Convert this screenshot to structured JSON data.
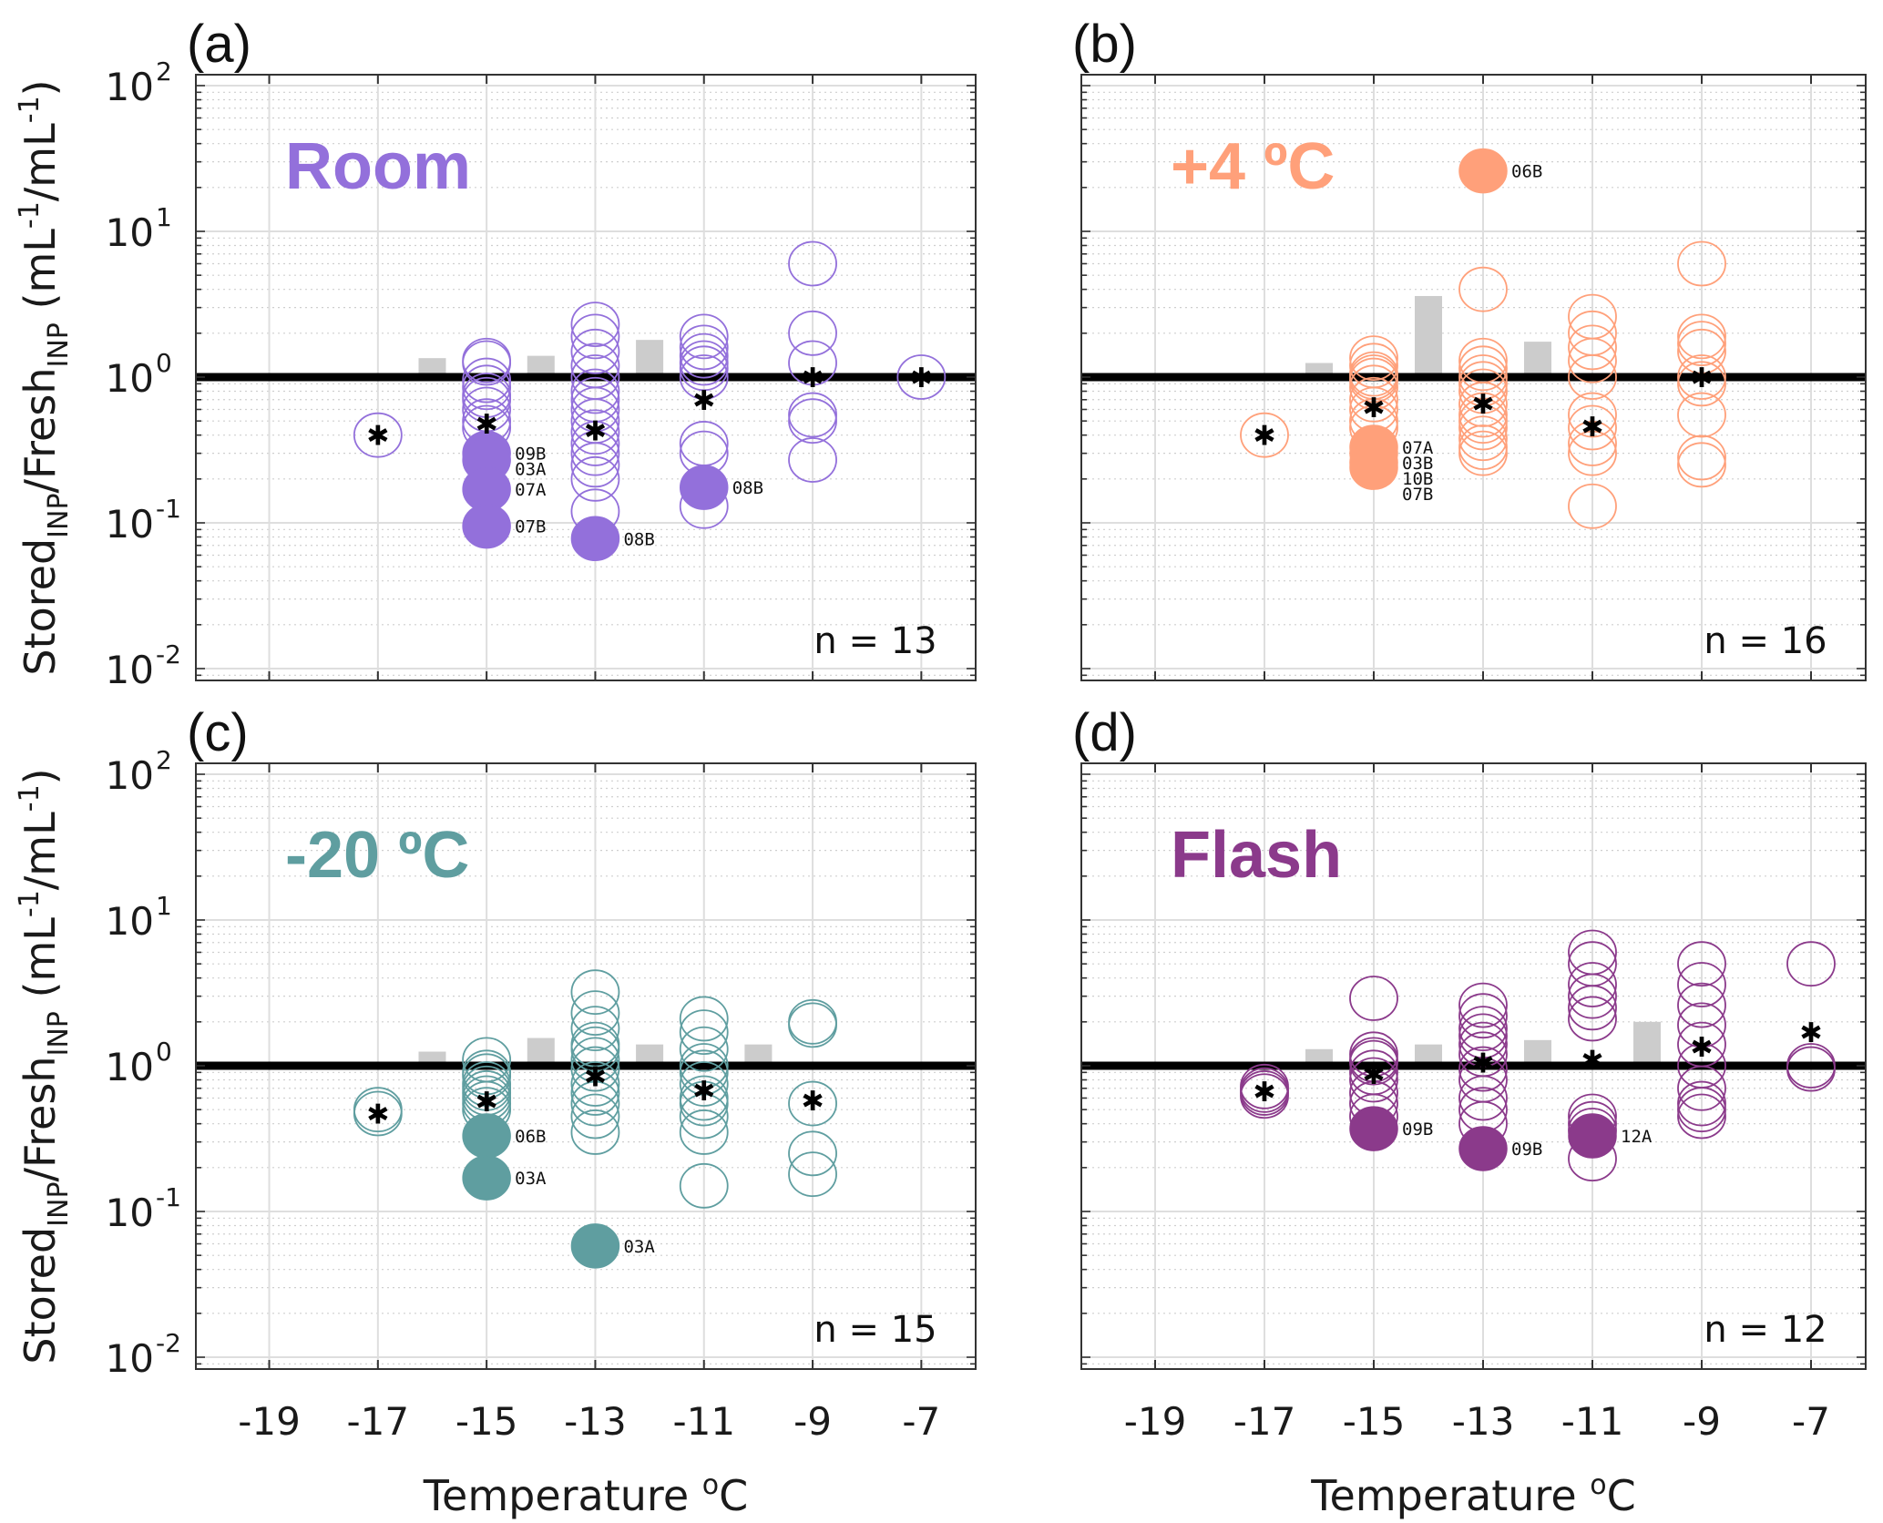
{
  "chart_data": {
    "type": "scatter",
    "figure_xlabel": "Temperature",
    "figure_xlabel_unit": "oC",
    "ylabel_parts": {
      "stored": "Stored",
      "sub1": "INP",
      "slash": "/Fresh",
      "sub2": "INP",
      "units": " (mL",
      "exp1": "-1",
      "mid": "/mL",
      "exp2": "-1",
      "close": ")"
    },
    "xlim": [
      -20,
      -6
    ],
    "ylim": [
      0.0085,
      120
    ],
    "yscale": "log",
    "xticks": [
      -19,
      -17,
      -15,
      -13,
      -11,
      -9,
      -7
    ],
    "xtick_labels": [
      "-19",
      "-17",
      "-15",
      "-13",
      "-11",
      "-9",
      "-7"
    ],
    "yticks": [
      0.01,
      0.1,
      1,
      10,
      100
    ],
    "ytick_labels": [
      {
        "base": "10",
        "exp": "-2"
      },
      {
        "base": "10",
        "exp": "-1"
      },
      {
        "base": "10",
        "exp": "0"
      },
      {
        "base": "10",
        "exp": "1"
      },
      {
        "base": "10",
        "exp": "2"
      }
    ],
    "reference_line": 1,
    "grid": true,
    "legend": "none",
    "marker_legend": {
      "open_circle": "individual sample ratio",
      "filled_circle": "labelled outlier sample",
      "asterisk": "median ratio",
      "gray_bar": "ratio bar between temperatures"
    },
    "panels": [
      {
        "id": "a",
        "panel_label": "(a)",
        "condition": "Room",
        "color": "#9370DB",
        "n_label": "n = 13",
        "open": [
          {
            "x": -17,
            "y": [
              0.4
            ]
          },
          {
            "x": -15,
            "y": [
              1.3,
              1.25,
              0.95,
              0.85,
              0.75,
              0.7,
              0.6,
              0.5,
              0.45
            ]
          },
          {
            "x": -13,
            "y": [
              2.3,
              1.9,
              1.5,
              1.2,
              1.0,
              0.8,
              0.7,
              0.6,
              0.5,
              0.42,
              0.35,
              0.3,
              0.25,
              0.2,
              0.12
            ]
          },
          {
            "x": -11,
            "y": [
              1.9,
              1.6,
              1.4,
              1.25,
              1.15,
              1.0,
              0.35,
              0.3,
              0.13
            ]
          },
          {
            "x": -9,
            "y": [
              6.0,
              2.0,
              1.25,
              0.55,
              0.5,
              0.27
            ]
          },
          {
            "x": -7,
            "y": [
              1.0
            ]
          }
        ],
        "filled": [
          {
            "x": -15,
            "y": 0.3,
            "label": "09B"
          },
          {
            "x": -15,
            "y": 0.27,
            "label": "03A"
          },
          {
            "x": -15,
            "y": 0.17,
            "label": "07A"
          },
          {
            "x": -15,
            "y": 0.095,
            "label": "07B"
          },
          {
            "x": -13,
            "y": 0.078,
            "label": "08B"
          },
          {
            "x": -11,
            "y": 0.175,
            "label": "08B"
          }
        ],
        "medians": [
          {
            "x": -17,
            "y": 0.4
          },
          {
            "x": -15,
            "y": 0.48
          },
          {
            "x": -13,
            "y": 0.43
          },
          {
            "x": -11,
            "y": 0.7
          },
          {
            "x": -9,
            "y": 1.0
          },
          {
            "x": -7,
            "y": 1.0
          }
        ],
        "bars": [
          {
            "x": -16,
            "y": 1.35
          },
          {
            "x": -14,
            "y": 1.4
          },
          {
            "x": -12,
            "y": 1.8
          }
        ]
      },
      {
        "id": "b",
        "panel_label": "(b)",
        "condition": "+4 ºC",
        "color": "#FFA07A",
        "n_label": "n = 16",
        "open": [
          {
            "x": -17,
            "y": [
              0.4
            ]
          },
          {
            "x": -15,
            "y": [
              1.35,
              1.2,
              1.05,
              1.0,
              0.95,
              0.85,
              0.7,
              0.6,
              0.5,
              0.45
            ]
          },
          {
            "x": -13,
            "y": [
              4.0,
              1.3,
              1.15,
              1.0,
              0.9,
              0.8,
              0.65,
              0.55,
              0.5,
              0.45,
              0.38,
              0.33,
              0.3
            ]
          },
          {
            "x": -11,
            "y": [
              2.6,
              2.0,
              1.6,
              1.3,
              1.0,
              0.55,
              0.45,
              0.35,
              0.3,
              0.13
            ]
          },
          {
            "x": -9,
            "y": [
              6.0,
              1.9,
              1.7,
              1.5,
              1.0,
              0.9,
              0.55,
              0.28,
              0.25
            ]
          }
        ],
        "filled": [
          {
            "x": -13,
            "y": 26,
            "label": "06B"
          },
          {
            "x": -15,
            "y": 0.33,
            "label": "07A"
          },
          {
            "x": -15,
            "y": 0.3,
            "label": "03B"
          },
          {
            "x": -15,
            "y": 0.26,
            "label": "10B"
          },
          {
            "x": -15,
            "y": 0.24,
            "label": "07B"
          }
        ],
        "medians": [
          {
            "x": -17,
            "y": 0.4
          },
          {
            "x": -15,
            "y": 0.62
          },
          {
            "x": -13,
            "y": 0.66
          },
          {
            "x": -11,
            "y": 0.46
          },
          {
            "x": -9,
            "y": 1.0
          }
        ],
        "bars": [
          {
            "x": -16,
            "y": 1.25
          },
          {
            "x": -14,
            "y": 3.6
          },
          {
            "x": -12,
            "y": 1.75
          }
        ]
      },
      {
        "id": "c",
        "panel_label": "(c)",
        "condition": "-20 ºC",
        "color": "#5F9EA0",
        "n_label": "n = 15",
        "open": [
          {
            "x": -17,
            "y": [
              0.5,
              0.47
            ]
          },
          {
            "x": -15,
            "y": [
              1.1,
              0.9,
              0.85,
              0.75,
              0.7,
              0.65,
              0.6,
              0.55,
              0.5
            ]
          },
          {
            "x": -13,
            "y": [
              3.2,
              2.3,
              1.8,
              1.4,
              1.3,
              1.1,
              0.95,
              0.75,
              0.65,
              0.55,
              0.45,
              0.35
            ]
          },
          {
            "x": -11,
            "y": [
              2.1,
              1.7,
              1.3,
              1.0,
              0.9,
              0.75,
              0.6,
              0.55,
              0.45,
              0.35,
              0.15
            ]
          },
          {
            "x": -9,
            "y": [
              2.0,
              1.9,
              0.55,
              0.25,
              0.18
            ]
          }
        ],
        "filled": [
          {
            "x": -15,
            "y": 0.33,
            "label": "06B"
          },
          {
            "x": -15,
            "y": 0.17,
            "label": "03A"
          },
          {
            "x": -13,
            "y": 0.058,
            "label": "03A"
          }
        ],
        "medians": [
          {
            "x": -17,
            "y": 0.47
          },
          {
            "x": -15,
            "y": 0.57
          },
          {
            "x": -13,
            "y": 0.85
          },
          {
            "x": -11,
            "y": 0.68
          },
          {
            "x": -9,
            "y": 0.58
          }
        ],
        "bars": [
          {
            "x": -16,
            "y": 1.25
          },
          {
            "x": -14,
            "y": 1.55
          },
          {
            "x": -12,
            "y": 1.4
          },
          {
            "x": -10,
            "y": 1.4
          }
        ]
      },
      {
        "id": "d",
        "panel_label": "(d)",
        "condition": "Flash",
        "color": "#8B3A8B",
        "n_label": "n = 12",
        "open": [
          {
            "x": -17,
            "y": [
              0.72,
              0.68,
              0.65,
              0.62
            ]
          },
          {
            "x": -15,
            "y": [
              2.9,
              1.2,
              1.1,
              1.05,
              0.9,
              0.8,
              0.65,
              0.55,
              0.45
            ]
          },
          {
            "x": -13,
            "y": [
              2.6,
              2.2,
              1.8,
              1.6,
              1.4,
              1.2,
              0.95,
              0.8,
              0.6,
              0.5,
              0.4
            ]
          },
          {
            "x": -11,
            "y": [
              6.0,
              5.0,
              3.6,
              3.0,
              2.5,
              2.1,
              0.45,
              0.4,
              0.36,
              0.23
            ]
          },
          {
            "x": -9,
            "y": [
              5.0,
              3.6,
              2.6,
              1.9,
              1.4,
              1.0,
              0.7,
              0.55,
              0.5,
              0.45
            ]
          },
          {
            "x": -7,
            "y": [
              5.0,
              1.0,
              0.95
            ]
          }
        ],
        "filled": [
          {
            "x": -15,
            "y": 0.37,
            "label": "09B"
          },
          {
            "x": -13,
            "y": 0.27,
            "label": "09B"
          },
          {
            "x": -11,
            "y": 0.33,
            "label": "12A"
          }
        ],
        "medians": [
          {
            "x": -17,
            "y": 0.67
          },
          {
            "x": -15,
            "y": 0.88
          },
          {
            "x": -13,
            "y": 1.05
          },
          {
            "x": -11,
            "y": 1.1
          },
          {
            "x": -9,
            "y": 1.35
          },
          {
            "x": -7,
            "y": 1.7
          }
        ],
        "bars": [
          {
            "x": -16,
            "y": 1.3
          },
          {
            "x": -14,
            "y": 1.4
          },
          {
            "x": -12,
            "y": 1.5
          },
          {
            "x": -10,
            "y": 2.0
          }
        ]
      }
    ]
  }
}
